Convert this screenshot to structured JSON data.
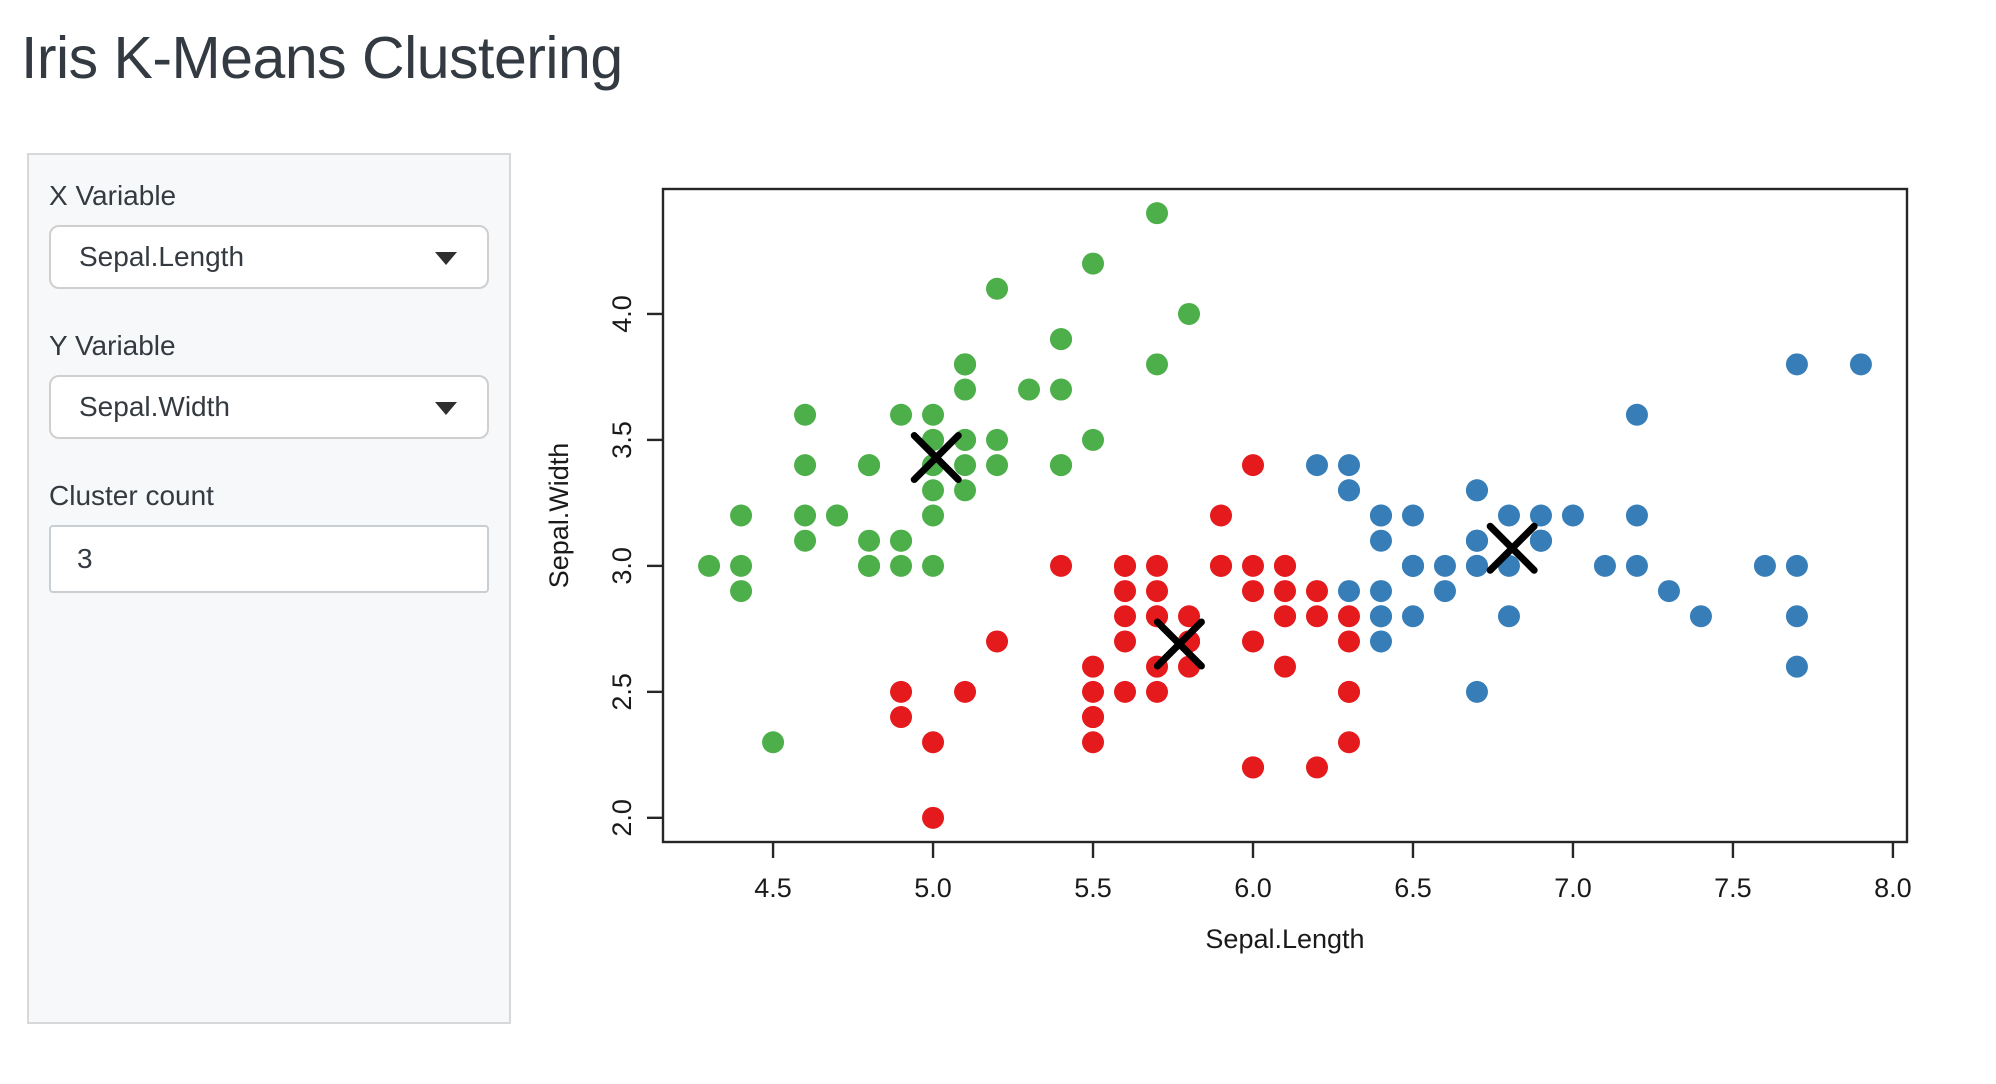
{
  "title": "Iris K-Means Clustering",
  "sidebar": {
    "x_variable": {
      "label": "X Variable",
      "value": "Sepal.Length"
    },
    "y_variable": {
      "label": "Y Variable",
      "value": "Sepal.Width"
    },
    "cluster_count": {
      "label": "Cluster count",
      "value": "3"
    }
  },
  "chart_data": {
    "type": "scatter",
    "title": "",
    "xlabel": "Sepal.Length",
    "ylabel": "Sepal.Width",
    "xlim": [
      4.156,
      8.044
    ],
    "ylim": [
      1.904,
      4.496
    ],
    "x_ticks": [
      4.5,
      5.0,
      5.5,
      6.0,
      6.5,
      7.0,
      7.5,
      8.0
    ],
    "y_ticks": [
      2.0,
      2.5,
      3.0,
      3.5,
      4.0
    ],
    "grid": false,
    "legend": "none",
    "cluster_colors": {
      "1": "#E41A1C",
      "2": "#377EB8",
      "3": "#4DAF4A"
    },
    "center_color": "#000000",
    "points": [
      [
        5.1,
        3.5,
        3
      ],
      [
        4.9,
        3.0,
        3
      ],
      [
        4.7,
        3.2,
        3
      ],
      [
        4.6,
        3.1,
        3
      ],
      [
        5.0,
        3.6,
        3
      ],
      [
        5.4,
        3.9,
        3
      ],
      [
        4.6,
        3.4,
        3
      ],
      [
        5.0,
        3.4,
        3
      ],
      [
        4.4,
        2.9,
        3
      ],
      [
        4.9,
        3.1,
        3
      ],
      [
        5.4,
        3.7,
        3
      ],
      [
        4.8,
        3.4,
        3
      ],
      [
        4.8,
        3.0,
        3
      ],
      [
        4.3,
        3.0,
        3
      ],
      [
        5.8,
        4.0,
        3
      ],
      [
        5.7,
        4.4,
        3
      ],
      [
        5.4,
        3.9,
        3
      ],
      [
        5.1,
        3.5,
        3
      ],
      [
        5.7,
        3.8,
        3
      ],
      [
        5.1,
        3.8,
        3
      ],
      [
        5.4,
        3.4,
        3
      ],
      [
        5.1,
        3.7,
        3
      ],
      [
        4.6,
        3.6,
        3
      ],
      [
        5.1,
        3.3,
        3
      ],
      [
        4.8,
        3.4,
        3
      ],
      [
        5.0,
        3.0,
        3
      ],
      [
        5.0,
        3.4,
        3
      ],
      [
        5.2,
        3.5,
        3
      ],
      [
        5.2,
        3.4,
        3
      ],
      [
        4.7,
        3.2,
        3
      ],
      [
        4.8,
        3.1,
        3
      ],
      [
        5.4,
        3.4,
        3
      ],
      [
        5.2,
        4.1,
        3
      ],
      [
        5.5,
        4.2,
        3
      ],
      [
        4.9,
        3.1,
        3
      ],
      [
        5.0,
        3.2,
        3
      ],
      [
        5.5,
        3.5,
        3
      ],
      [
        4.9,
        3.6,
        3
      ],
      [
        4.4,
        3.0,
        3
      ],
      [
        5.1,
        3.4,
        3
      ],
      [
        5.0,
        3.5,
        3
      ],
      [
        4.5,
        2.3,
        3
      ],
      [
        4.4,
        3.2,
        3
      ],
      [
        5.0,
        3.5,
        3
      ],
      [
        5.1,
        3.8,
        3
      ],
      [
        4.8,
        3.0,
        3
      ],
      [
        5.1,
        3.8,
        3
      ],
      [
        4.6,
        3.2,
        3
      ],
      [
        5.3,
        3.7,
        3
      ],
      [
        5.0,
        3.3,
        3
      ],
      [
        7.0,
        3.2,
        2
      ],
      [
        6.4,
        3.2,
        2
      ],
      [
        6.9,
        3.1,
        2
      ],
      [
        5.5,
        2.3,
        1
      ],
      [
        6.5,
        2.8,
        2
      ],
      [
        5.7,
        2.8,
        1
      ],
      [
        6.3,
        3.3,
        2
      ],
      [
        4.9,
        2.4,
        1
      ],
      [
        6.6,
        2.9,
        2
      ],
      [
        5.2,
        2.7,
        1
      ],
      [
        5.0,
        2.0,
        1
      ],
      [
        5.9,
        3.0,
        1
      ],
      [
        6.0,
        2.2,
        1
      ],
      [
        6.1,
        2.9,
        1
      ],
      [
        5.6,
        2.9,
        1
      ],
      [
        6.7,
        3.1,
        2
      ],
      [
        5.6,
        3.0,
        1
      ],
      [
        5.8,
        2.7,
        1
      ],
      [
        6.2,
        2.2,
        1
      ],
      [
        5.6,
        2.5,
        1
      ],
      [
        5.9,
        3.2,
        1
      ],
      [
        6.1,
        2.8,
        1
      ],
      [
        6.3,
        2.5,
        1
      ],
      [
        6.1,
        2.8,
        1
      ],
      [
        6.4,
        2.9,
        2
      ],
      [
        6.6,
        3.0,
        2
      ],
      [
        6.8,
        2.8,
        2
      ],
      [
        6.7,
        3.0,
        2
      ],
      [
        6.0,
        2.9,
        1
      ],
      [
        5.7,
        2.6,
        1
      ],
      [
        5.5,
        2.4,
        1
      ],
      [
        5.5,
        2.4,
        1
      ],
      [
        5.8,
        2.7,
        1
      ],
      [
        6.0,
        2.7,
        1
      ],
      [
        5.4,
        3.0,
        1
      ],
      [
        6.0,
        3.4,
        1
      ],
      [
        6.7,
        3.1,
        2
      ],
      [
        6.3,
        2.3,
        1
      ],
      [
        5.6,
        3.0,
        1
      ],
      [
        5.5,
        2.5,
        1
      ],
      [
        5.5,
        2.6,
        1
      ],
      [
        6.1,
        3.0,
        1
      ],
      [
        5.8,
        2.6,
        1
      ],
      [
        5.0,
        2.3,
        1
      ],
      [
        5.6,
        2.7,
        1
      ],
      [
        5.7,
        3.0,
        1
      ],
      [
        5.7,
        2.9,
        1
      ],
      [
        6.2,
        2.9,
        1
      ],
      [
        5.1,
        2.5,
        1
      ],
      [
        5.7,
        2.8,
        1
      ],
      [
        6.3,
        3.3,
        2
      ],
      [
        5.8,
        2.7,
        1
      ],
      [
        7.1,
        3.0,
        2
      ],
      [
        6.3,
        2.9,
        2
      ],
      [
        6.5,
        3.0,
        2
      ],
      [
        7.6,
        3.0,
        2
      ],
      [
        4.9,
        2.5,
        1
      ],
      [
        7.3,
        2.9,
        2
      ],
      [
        6.7,
        2.5,
        2
      ],
      [
        7.2,
        3.6,
        2
      ],
      [
        6.5,
        3.2,
        2
      ],
      [
        6.4,
        2.7,
        2
      ],
      [
        6.8,
        3.0,
        2
      ],
      [
        5.7,
        2.5,
        1
      ],
      [
        5.8,
        2.8,
        1
      ],
      [
        6.4,
        3.2,
        2
      ],
      [
        6.5,
        3.0,
        2
      ],
      [
        7.7,
        3.8,
        2
      ],
      [
        7.7,
        2.6,
        2
      ],
      [
        6.0,
        2.2,
        1
      ],
      [
        6.9,
        3.2,
        2
      ],
      [
        5.6,
        2.8,
        1
      ],
      [
        7.7,
        2.8,
        2
      ],
      [
        6.3,
        2.7,
        1
      ],
      [
        6.7,
        3.3,
        2
      ],
      [
        7.2,
        3.2,
        2
      ],
      [
        6.2,
        2.8,
        1
      ],
      [
        6.1,
        3.0,
        1
      ],
      [
        6.4,
        2.8,
        2
      ],
      [
        7.2,
        3.0,
        2
      ],
      [
        7.4,
        2.8,
        2
      ],
      [
        7.9,
        3.8,
        2
      ],
      [
        6.4,
        2.8,
        2
      ],
      [
        6.3,
        2.8,
        1
      ],
      [
        6.1,
        2.6,
        1
      ],
      [
        7.7,
        3.0,
        2
      ],
      [
        6.3,
        3.4,
        2
      ],
      [
        6.4,
        3.1,
        2
      ],
      [
        6.0,
        3.0,
        1
      ],
      [
        6.9,
        3.1,
        2
      ],
      [
        6.7,
        3.1,
        2
      ],
      [
        6.9,
        3.1,
        2
      ],
      [
        5.8,
        2.7,
        1
      ],
      [
        6.8,
        3.2,
        2
      ],
      [
        6.7,
        3.3,
        2
      ],
      [
        6.7,
        3.0,
        2
      ],
      [
        6.3,
        2.5,
        1
      ],
      [
        6.5,
        3.0,
        2
      ],
      [
        6.2,
        3.4,
        2
      ],
      [
        5.9,
        3.0,
        1
      ]
    ],
    "centers": [
      [
        5.01,
        3.43
      ],
      [
        5.77,
        2.69
      ],
      [
        6.81,
        3.07
      ]
    ]
  }
}
